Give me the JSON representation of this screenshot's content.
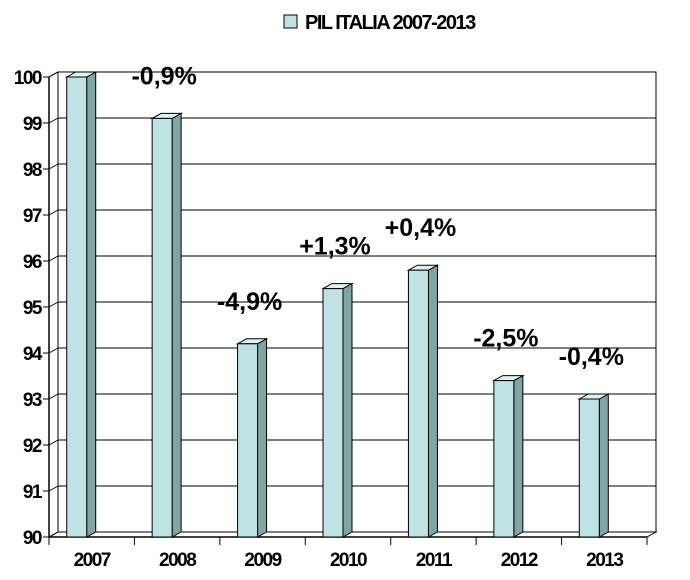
{
  "chart_data": {
    "type": "bar",
    "title": "",
    "xlabel": "",
    "ylabel": "",
    "categories": [
      "2007",
      "2008",
      "2009",
      "2010",
      "2011",
      "2012",
      "2013"
    ],
    "series": [
      {
        "name": "PIL ITALIA 2007-2013",
        "values": [
          100,
          99.1,
          94.2,
          95.4,
          95.8,
          93.4,
          93.0
        ],
        "data_labels": [
          "",
          "-0,9%",
          "-4,9%",
          "+1,3%",
          "+0,4%",
          "-2,5%",
          "-0,4%"
        ]
      }
    ],
    "ylim": [
      90,
      100
    ],
    "yticks": [
      "90",
      "91",
      "92",
      "93",
      "94",
      "95",
      "96",
      "97",
      "98",
      "99",
      "100"
    ],
    "grid": true,
    "legend_position": "top",
    "style": "3d-column",
    "colors": {
      "bar_front": "#bfe3e3",
      "bar_side": "#7fa5a5",
      "bar_top": "#dff3f3",
      "wall": "#ffffff",
      "gridline": "#000000"
    }
  }
}
